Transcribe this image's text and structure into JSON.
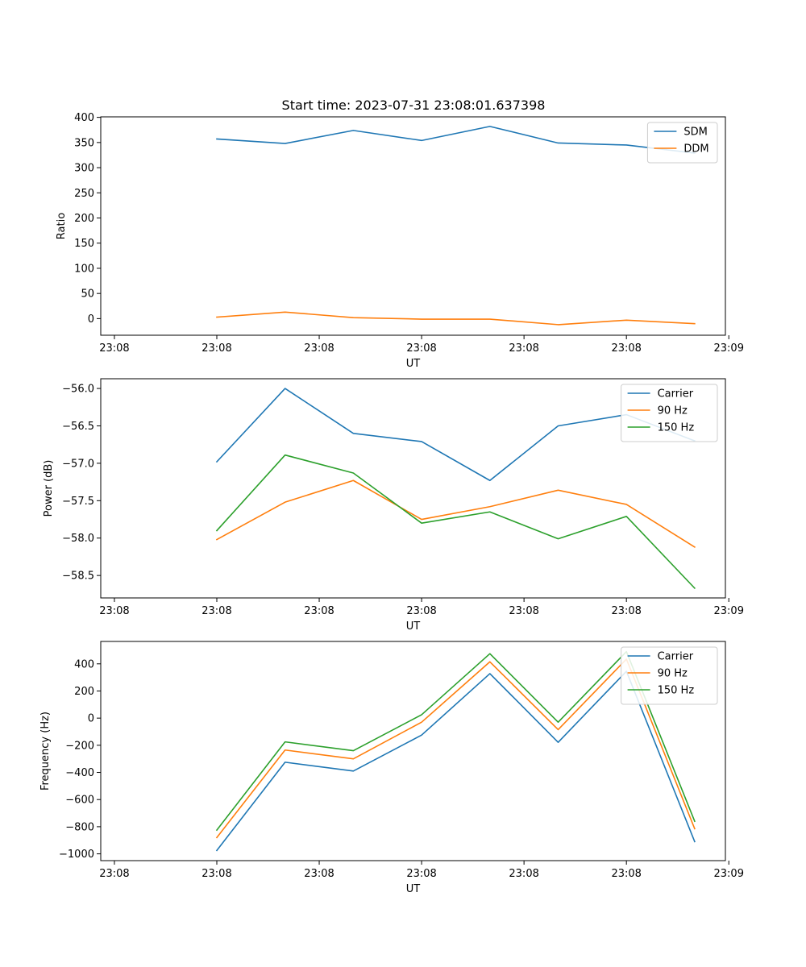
{
  "figure": {
    "title": "Start time: 2023-07-31 23:08:01.637398"
  },
  "colors": {
    "blue": "#1f77b4",
    "orange": "#ff7f0e",
    "green": "#2ca02c"
  },
  "chart_data": [
    {
      "type": "line",
      "title": "Start time: 2023-07-31 23:08:01.637398",
      "xlabel": "UT",
      "ylabel": "Ratio",
      "x": [
        1,
        2,
        3,
        4,
        5,
        6,
        7,
        8
      ],
      "xlim": [
        -0.7,
        8.45
      ],
      "xticks": [
        -0.5,
        1,
        2.5,
        4,
        5.5,
        7,
        8.5
      ],
      "xticklabels": [
        "23:08",
        "23:08",
        "23:08",
        "23:08",
        "23:08",
        "23:08",
        "23:09"
      ],
      "ylim": [
        -33,
        401
      ],
      "yticks": [
        0,
        50,
        100,
        150,
        200,
        250,
        300,
        350,
        400
      ],
      "yticklabels": [
        "0",
        "50",
        "100",
        "150",
        "200",
        "250",
        "300",
        "350",
        "400"
      ],
      "legend": "top-right",
      "grid": false,
      "series": [
        {
          "name": "SDM",
          "color": "#1f77b4",
          "values": [
            357,
            348,
            374,
            354,
            382,
            349,
            345,
            329
          ]
        },
        {
          "name": "DDM",
          "color": "#ff7f0e",
          "values": [
            3,
            13,
            2,
            -1,
            -1,
            -12,
            -3,
            -10
          ]
        }
      ]
    },
    {
      "type": "line",
      "title": "",
      "xlabel": "UT",
      "ylabel": "Power (dB)",
      "x": [
        1,
        2,
        3,
        4,
        5,
        6,
        7,
        8
      ],
      "xlim": [
        -0.7,
        8.45
      ],
      "xticks": [
        -0.5,
        1,
        2.5,
        4,
        5.5,
        7,
        8.5
      ],
      "xticklabels": [
        "23:08",
        "23:08",
        "23:08",
        "23:08",
        "23:08",
        "23:08",
        "23:09"
      ],
      "ylim": [
        -58.8,
        -55.87
      ],
      "yticks": [
        -58.5,
        -58.0,
        -57.5,
        -57.0,
        -56.5,
        -56.0
      ],
      "yticklabels": [
        "−58.5",
        "−58.0",
        "−57.5",
        "−57.0",
        "−56.5",
        "−56.0"
      ],
      "legend": "top-right",
      "grid": false,
      "series": [
        {
          "name": "Carrier",
          "color": "#1f77b4",
          "values": [
            -56.98,
            -56.0,
            -56.6,
            -56.71,
            -57.23,
            -56.5,
            -56.35,
            -56.7
          ]
        },
        {
          "name": "90 Hz",
          "color": "#ff7f0e",
          "values": [
            -58.02,
            -57.52,
            -57.23,
            -57.75,
            -57.58,
            -57.36,
            -57.55,
            -58.12
          ]
        },
        {
          "name": "150 Hz",
          "color": "#2ca02c",
          "values": [
            -57.9,
            -56.89,
            -57.13,
            -57.8,
            -57.65,
            -58.01,
            -57.71,
            -58.67
          ]
        }
      ]
    },
    {
      "type": "line",
      "title": "",
      "xlabel": "UT",
      "ylabel": "Frequency (Hz)",
      "x": [
        1,
        2,
        3,
        4,
        5,
        6,
        7,
        8
      ],
      "xlim": [
        -0.7,
        8.45
      ],
      "xticks": [
        -0.5,
        1,
        2.5,
        4,
        5.5,
        7,
        8.5
      ],
      "xticklabels": [
        "23:08",
        "23:08",
        "23:08",
        "23:08",
        "23:08",
        "23:08",
        "23:09"
      ],
      "ylim": [
        -1050,
        565
      ],
      "yticks": [
        -1000,
        -800,
        -600,
        -400,
        -200,
        0,
        200,
        400
      ],
      "yticklabels": [
        "−1000",
        "−800",
        "−600",
        "−400",
        "−200",
        "0",
        "200",
        "400"
      ],
      "legend": "top-right",
      "grid": false,
      "series": [
        {
          "name": "Carrier",
          "color": "#1f77b4",
          "values": [
            -975,
            -325,
            -390,
            -125,
            328,
            -178,
            345,
            -910
          ]
        },
        {
          "name": "90 Hz",
          "color": "#ff7f0e",
          "values": [
            -880,
            -235,
            -300,
            -30,
            415,
            -85,
            435,
            -815
          ]
        },
        {
          "name": "150 Hz",
          "color": "#2ca02c",
          "values": [
            -825,
            -175,
            -240,
            25,
            475,
            -30,
            490,
            -760
          ]
        }
      ]
    }
  ]
}
